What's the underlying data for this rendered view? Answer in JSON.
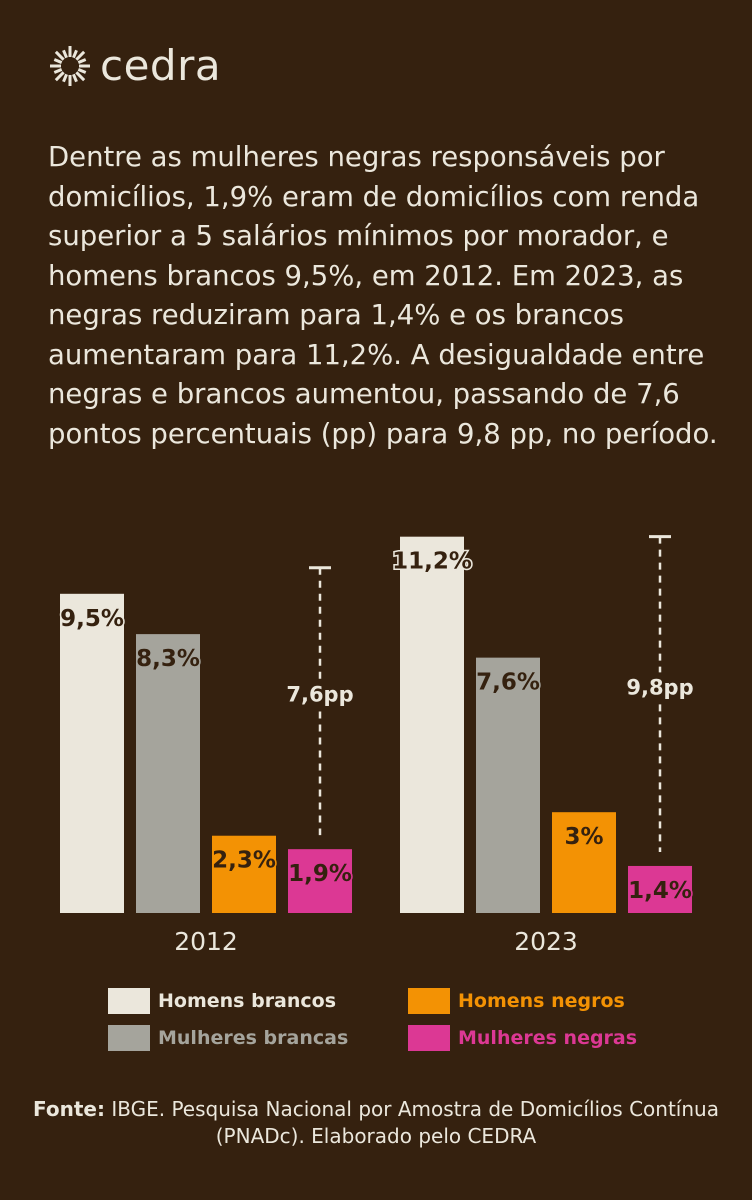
{
  "brand": {
    "name": "cedra",
    "icon": "sun-burst-icon"
  },
  "intro_text": "Dentre as mulheres negras responsáveis por domicílios, 1,9% eram de domicílios com renda superior a 5 salários mínimos por morador, e homens brancos 9,5%, em 2012. Em 2023, as negras reduziram para 1,4% e os brancos aumentaram para 11,2%. A desigualdade entre negras e brancos aumentou, passando de 7,6 pontos percentuais (pp) para 9,8 pp, no período.",
  "colors": {
    "background": "#35210f",
    "homens_brancos": "#ebe7dc",
    "mulheres_brancas": "#a5a49c",
    "homens_negros": "#f39204",
    "mulheres_negras": "#dc3894",
    "text": "#ebe7dc"
  },
  "chart_data": {
    "type": "bar",
    "title": "",
    "xlabel": "",
    "ylabel": "",
    "ylim": [
      0,
      11.2
    ],
    "grid": false,
    "legend_placement": "bottom",
    "categories": [
      "2012",
      "2023"
    ],
    "series": [
      {
        "name": "Homens brancos",
        "values": [
          9.5,
          11.2
        ],
        "labels": [
          "9,5%",
          "11,2%"
        ]
      },
      {
        "name": "Mulheres brancas",
        "values": [
          8.3,
          7.6
        ],
        "labels": [
          "8,3%",
          "7,6%"
        ]
      },
      {
        "name": "Homens negros",
        "values": [
          2.3,
          3.0
        ],
        "labels": [
          "2,3%",
          "3%"
        ]
      },
      {
        "name": "Mulheres negras",
        "values": [
          1.9,
          1.4
        ],
        "labels": [
          "1,9%",
          "1,4%"
        ]
      }
    ],
    "annotations": [
      {
        "category": "2012",
        "gap": 7.6,
        "label": "7,6pp"
      },
      {
        "category": "2023",
        "gap": 9.8,
        "label": "9,8pp"
      }
    ]
  },
  "source": {
    "label": "Fonte:",
    "text": " IBGE. Pesquisa Nacional por Amostra de Domicílios Contínua (PNADc). Elaborado pelo CEDRA"
  }
}
